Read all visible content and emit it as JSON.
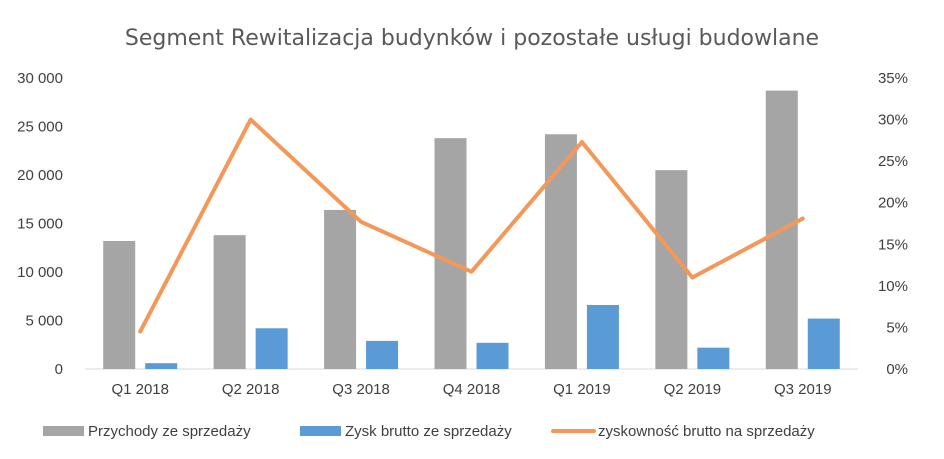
{
  "chart_data": {
    "type": "bar",
    "title": "Segment Rewitalizacja budynków i pozostałe usługi budowlane",
    "categories": [
      "Q1 2018",
      "Q2 2018",
      "Q3 2018",
      "Q4 2018",
      "Q1 2019",
      "Q2 2019",
      "Q3 2019"
    ],
    "series": [
      {
        "name": "Przychody ze sprzedaży",
        "type": "bar",
        "axis": "left",
        "color": "#a5a5a5",
        "values": [
          13200,
          13800,
          16400,
          23800,
          24200,
          20500,
          28700
        ]
      },
      {
        "name": "Zysk brutto ze sprzedaży",
        "type": "bar",
        "axis": "left",
        "color": "#5b9bd5",
        "values": [
          600,
          4200,
          2900,
          2700,
          6600,
          2200,
          5200
        ]
      },
      {
        "name": "zyskowność brutto na sprzedaży",
        "type": "line",
        "axis": "right",
        "color": "#f4985a",
        "values": [
          0.045,
          0.3,
          0.177,
          0.117,
          0.273,
          0.11,
          0.181
        ]
      }
    ],
    "y_left": {
      "ylim": [
        0,
        30000
      ],
      "ticks": [
        0,
        5000,
        10000,
        15000,
        20000,
        25000,
        30000
      ],
      "tick_labels": [
        "0",
        "5 000",
        "10 000",
        "15 000",
        "20 000",
        "25 000",
        "30 000"
      ]
    },
    "y_right": {
      "ylim": [
        0,
        0.35
      ],
      "ticks": [
        0,
        0.05,
        0.1,
        0.15,
        0.2,
        0.25,
        0.3,
        0.35
      ],
      "tick_labels": [
        "0%",
        "5%",
        "10%",
        "15%",
        "20%",
        "25%",
        "30%",
        "35%"
      ]
    },
    "grid": false,
    "legend_position": "bottom"
  }
}
